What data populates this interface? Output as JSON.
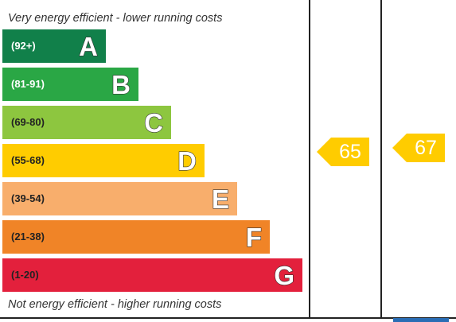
{
  "top_caption": "Very energy efficient - lower running costs",
  "bottom_caption": "Not energy efficient - higher running costs",
  "bands": [
    {
      "range": "(92+)",
      "letter": "A",
      "color": "#11804a",
      "text_color": "#ffffff"
    },
    {
      "range": "(81-91)",
      "letter": "B",
      "color": "#2aa745",
      "text_color": "#ffffff"
    },
    {
      "range": "(69-80)",
      "letter": "C",
      "color": "#8dc63f",
      "text_color": "#222222"
    },
    {
      "range": "(55-68)",
      "letter": "D",
      "color": "#ffcc00",
      "text_color": "#222222"
    },
    {
      "range": "(39-54)",
      "letter": "E",
      "color": "#f8ae6c",
      "text_color": "#222222"
    },
    {
      "range": "(21-38)",
      "letter": "F",
      "color": "#f08427",
      "text_color": "#222222"
    },
    {
      "range": "(1-20)",
      "letter": "G",
      "color": "#e3203c",
      "text_color": "#222222"
    }
  ],
  "ratings": {
    "current": {
      "value": "65",
      "color": "#ffcc00"
    },
    "potential": {
      "value": "67",
      "color": "#ffcc00"
    }
  }
}
